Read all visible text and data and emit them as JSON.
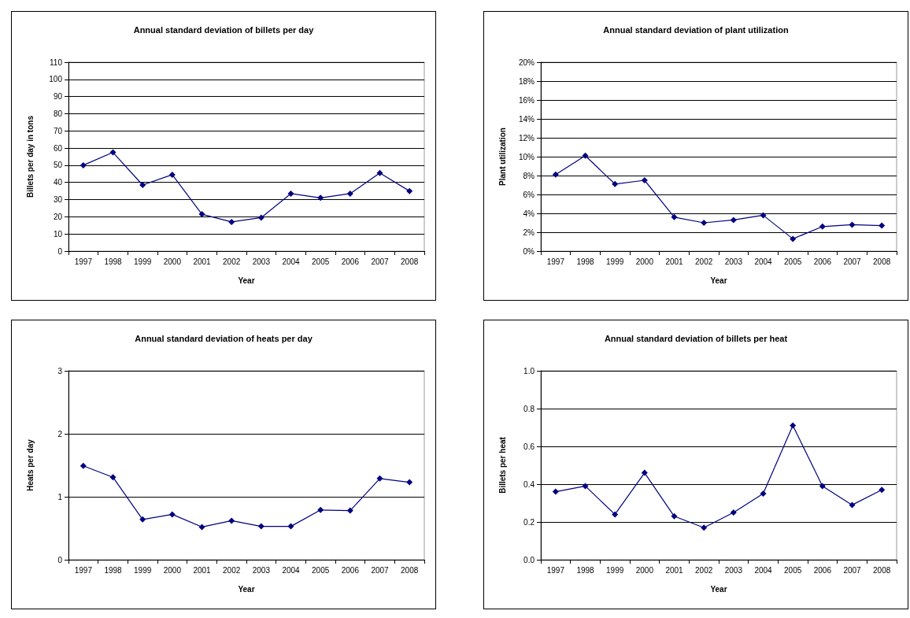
{
  "chart_data": [
    {
      "type": "line",
      "title": "Annual standard deviation of billets per day",
      "xlabel": "Year",
      "ylabel": "Billets per day in tons",
      "categories": [
        "1997",
        "1998",
        "1999",
        "2000",
        "2001",
        "2002",
        "2003",
        "2004",
        "2005",
        "2006",
        "2007",
        "2008"
      ],
      "series": [
        {
          "color": "#000080",
          "values": [
            50,
            57.5,
            38.5,
            44.5,
            21.5,
            17,
            19.5,
            33.5,
            31,
            33.5,
            45.5,
            35
          ]
        }
      ],
      "ylim": [
        0,
        110
      ],
      "yticks": [
        0,
        10,
        20,
        30,
        40,
        50,
        60,
        70,
        80,
        90,
        100,
        110
      ],
      "grid": "y",
      "marker": "diamond",
      "line_style": "solid"
    },
    {
      "type": "line",
      "title": "Annual standard deviation of plant utilization",
      "xlabel": "Year",
      "ylabel": "Plant utilization",
      "categories": [
        "1997",
        "1998",
        "1999",
        "2000",
        "2001",
        "2002",
        "2003",
        "2004",
        "2005",
        "2006",
        "2007",
        "2008"
      ],
      "series": [
        {
          "color": "#000080",
          "values": [
            8.1,
            10.1,
            7.1,
            7.5,
            3.6,
            3.0,
            3.3,
            3.8,
            1.3,
            2.6,
            2.8,
            2.7
          ]
        }
      ],
      "ylim": [
        0,
        20
      ],
      "yticks": [
        {
          "value": 0,
          "label": "0%"
        },
        {
          "value": 2,
          "label": "2%"
        },
        {
          "value": 4,
          "label": "4%"
        },
        {
          "value": 6,
          "label": "6%"
        },
        {
          "value": 8,
          "label": "8%"
        },
        {
          "value": 10,
          "label": "10%"
        },
        {
          "value": 12,
          "label": "12%"
        },
        {
          "value": 14,
          "label": "14%"
        },
        {
          "value": 16,
          "label": "16%"
        },
        {
          "value": 18,
          "label": "18%"
        },
        {
          "value": 20,
          "label": "20%"
        }
      ],
      "grid": "y",
      "marker": "diamond",
      "line_style": "solid"
    },
    {
      "type": "line",
      "title": "Annual standard deviation of heats per day",
      "xlabel": "Year",
      "ylabel": "Heats per day",
      "categories": [
        "1997",
        "1998",
        "1999",
        "2000",
        "2001",
        "2002",
        "2003",
        "2004",
        "2005",
        "2006",
        "2007",
        "2008"
      ],
      "series": [
        {
          "color": "#000080",
          "values": [
            1.49,
            1.31,
            0.64,
            0.72,
            0.52,
            0.62,
            0.53,
            0.53,
            0.79,
            0.78,
            1.29,
            1.23
          ]
        }
      ],
      "ylim": [
        0,
        3
      ],
      "yticks": [
        0,
        1,
        2,
        3
      ],
      "grid": "y",
      "marker": "diamond",
      "line_style": "solid"
    },
    {
      "type": "line",
      "title": "Annual standard deviation of billets per heat",
      "xlabel": "Year",
      "ylabel": "Billets per heat",
      "categories": [
        "1997",
        "1998",
        "1999",
        "2000",
        "2001",
        "2002",
        "2003",
        "2004",
        "2005",
        "2006",
        "2007",
        "2008"
      ],
      "series": [
        {
          "color": "#000080",
          "values": [
            0.36,
            0.39,
            0.24,
            0.46,
            0.23,
            0.17,
            0.25,
            0.35,
            0.71,
            0.39,
            0.29,
            0.37
          ]
        }
      ],
      "ylim": [
        0,
        1
      ],
      "yticks": [
        {
          "value": 0,
          "label": "0.0"
        },
        {
          "value": 0.2,
          "label": "0.2"
        },
        {
          "value": 0.4,
          "label": "0.4"
        },
        {
          "value": 0.6,
          "label": "0.6"
        },
        {
          "value": 0.8,
          "label": "0.8"
        },
        {
          "value": 1,
          "label": "1.0"
        }
      ],
      "grid": "y",
      "marker": "diamond",
      "line_style": "solid"
    }
  ]
}
